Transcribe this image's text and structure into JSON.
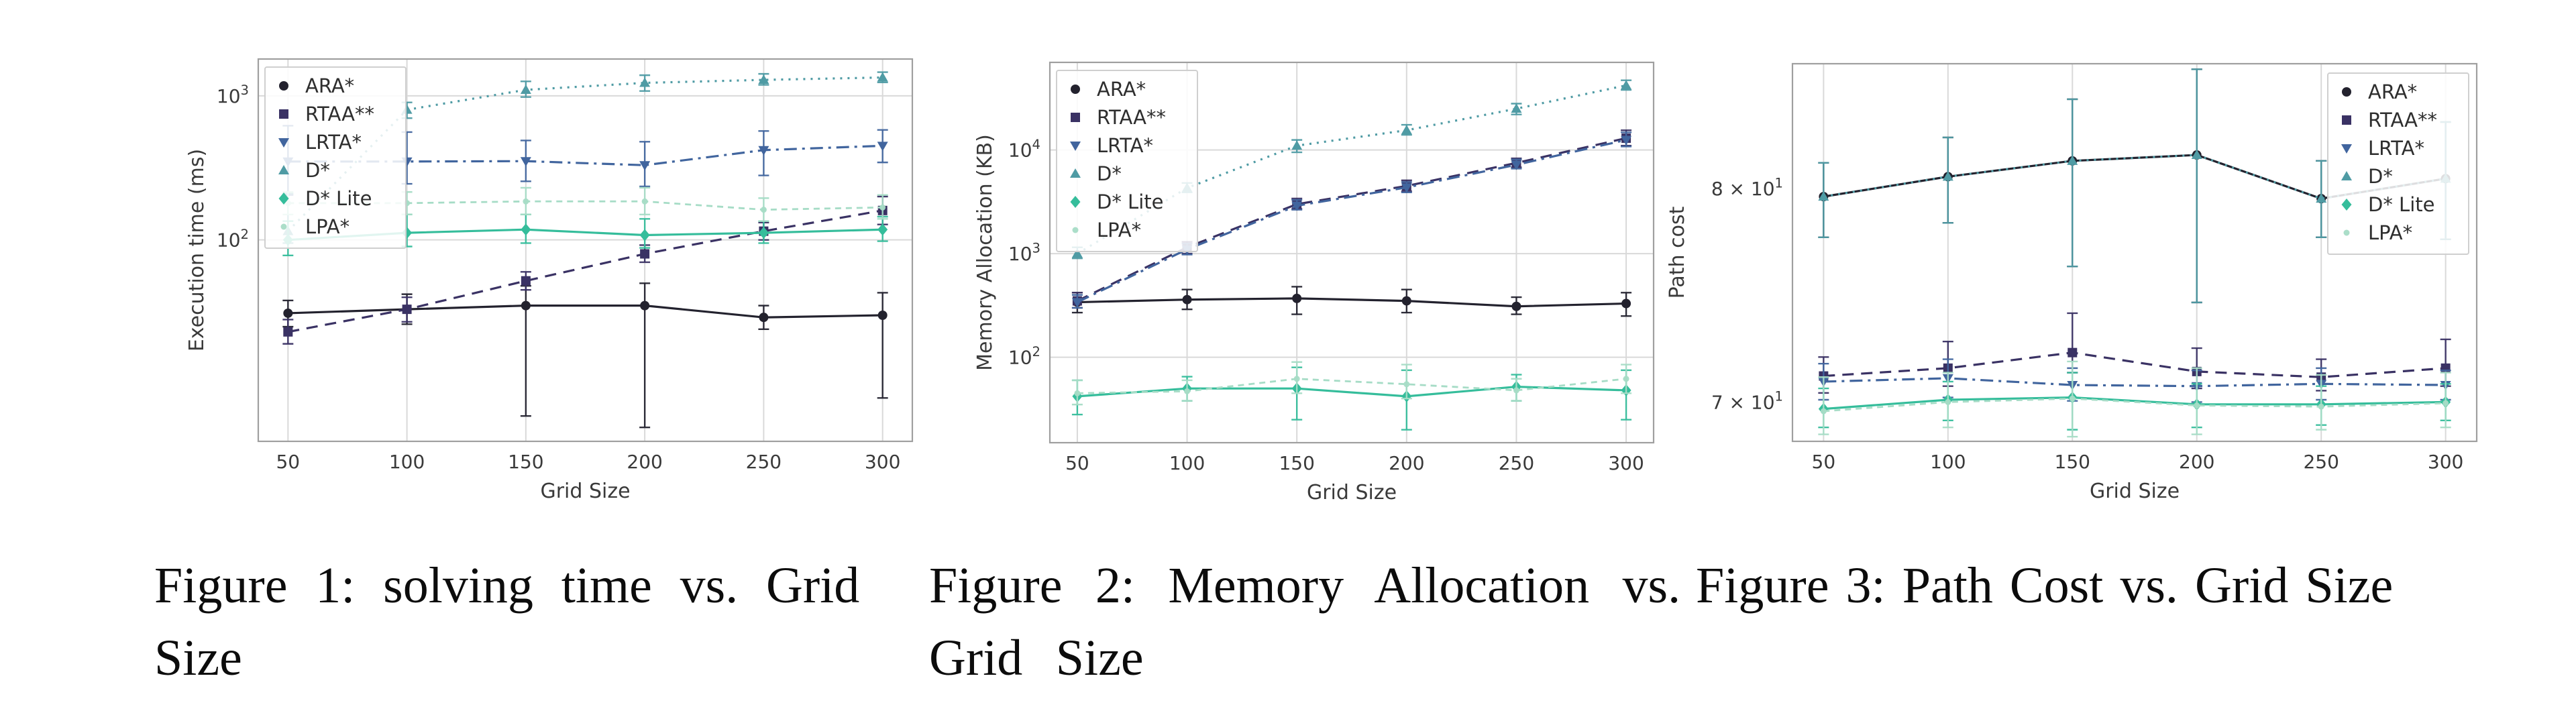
{
  "page": {
    "background": "#ffffff",
    "grid_color": "#d9d9d9",
    "spine_color": "#9f9f9f",
    "text_color": "#3a3a3a"
  },
  "algorithms": [
    {
      "name": "ARA*",
      "color": "#23222e",
      "marker": "circle",
      "line": "solid"
    },
    {
      "name": "RTAA**",
      "color": "#3a3264",
      "marker": "square",
      "line": "dashed"
    },
    {
      "name": "LRTA*",
      "color": "#41659e",
      "marker": "triangle-down",
      "line": "dashdot"
    },
    {
      "name": "D*",
      "color": "#4f9ba4",
      "marker": "triangle-up",
      "line": "dotted"
    },
    {
      "name": "D* Lite",
      "color": "#35bd9b",
      "marker": "diamond",
      "line": "solid"
    },
    {
      "name": "LPA*",
      "color": "#a6dcc6",
      "marker": "dot",
      "line": "dashed-small"
    }
  ],
  "chart_data": [
    {
      "id": "figure1-execution-time",
      "type": "line",
      "title": "",
      "xlabel": "Grid Size",
      "ylabel": "Execution time (ms)",
      "x": [
        50,
        100,
        150,
        200,
        250,
        300
      ],
      "xticklabels": [
        "50",
        "100",
        "150",
        "200",
        "250",
        "300"
      ],
      "yscale": "log",
      "ylim": [
        4,
        1800
      ],
      "yticks": [
        {
          "v": 100,
          "label": "10^2",
          "grid": true
        },
        {
          "v": 1000,
          "label": "10^3",
          "grid": true
        }
      ],
      "legend_position": "upper-left",
      "series": [
        {
          "name": "ARA*",
          "values": [
            31,
            33,
            35,
            35,
            29,
            30
          ],
          "err_lo": [
            25,
            26,
            6,
            5,
            24,
            8
          ],
          "err_hi": [
            38,
            42,
            48,
            50,
            35,
            43
          ]
        },
        {
          "name": "RTAA**",
          "values": [
            23,
            33,
            52,
            80,
            115,
            160
          ],
          "err_lo": [
            19,
            27,
            45,
            70,
            100,
            128
          ],
          "err_hi": [
            28,
            40,
            60,
            92,
            132,
            200
          ]
        },
        {
          "name": "LRTA*",
          "values": [
            350,
            350,
            352,
            330,
            420,
            450
          ],
          "err_lo": [
            205,
            245,
            255,
            235,
            280,
            345
          ],
          "err_hi": [
            620,
            560,
            490,
            480,
            570,
            580
          ]
        },
        {
          "name": "D*",
          "values": [
            115,
            800,
            1100,
            1230,
            1290,
            1340
          ],
          "err_lo": [
            95,
            700,
            980,
            1080,
            1190,
            1240
          ],
          "err_hi": [
            210,
            900,
            1260,
            1390,
            1420,
            1460
          ]
        },
        {
          "name": "D* Lite",
          "values": [
            100,
            112,
            118,
            108,
            112,
            118
          ],
          "err_lo": [
            78,
            90,
            95,
            88,
            95,
            98
          ],
          "err_hi": [
            135,
            150,
            150,
            140,
            135,
            145
          ]
        },
        {
          "name": "LPA*",
          "values": [
            180,
            180,
            185,
            185,
            162,
            168
          ],
          "err_lo": [
            150,
            150,
            150,
            150,
            135,
            140
          ],
          "err_hi": [
            215,
            215,
            230,
            230,
            195,
            205
          ]
        }
      ]
    },
    {
      "id": "figure2-memory-allocation",
      "type": "line",
      "title": "",
      "xlabel": "Grid Size",
      "ylabel": "Memory Allocation (KB)",
      "x": [
        50,
        100,
        150,
        200,
        250,
        300
      ],
      "xticklabels": [
        "50",
        "100",
        "150",
        "200",
        "250",
        "300"
      ],
      "yscale": "log",
      "ylim": [
        15,
        70000
      ],
      "yticks": [
        {
          "v": 100,
          "label": "10^2",
          "grid": true
        },
        {
          "v": 1000,
          "label": "10^3",
          "grid": true
        },
        {
          "v": 10000,
          "label": "10^4",
          "grid": true
        }
      ],
      "legend_position": "upper-left",
      "series": [
        {
          "name": "ARA*",
          "values": [
            340,
            360,
            370,
            350,
            310,
            330
          ],
          "err_lo": [
            270,
            290,
            260,
            270,
            260,
            250
          ],
          "err_hi": [
            420,
            450,
            480,
            450,
            380,
            420
          ]
        },
        {
          "name": "RTAA**",
          "values": [
            350,
            1150,
            3000,
            4500,
            7500,
            13000
          ],
          "err_lo": [
            300,
            1000,
            2700,
            4000,
            6800,
            11000
          ],
          "err_hi": [
            420,
            1300,
            3400,
            5100,
            8300,
            15500
          ]
        },
        {
          "name": "LRTA*",
          "values": [
            340,
            1100,
            2900,
            4350,
            7200,
            12500
          ],
          "err_lo": [
            300,
            980,
            2650,
            3900,
            6600,
            10800
          ],
          "err_hi": [
            400,
            1250,
            3300,
            4900,
            8100,
            14800
          ]
        },
        {
          "name": "D*",
          "values": [
            1000,
            4300,
            11000,
            15500,
            25000,
            42000
          ],
          "err_lo": [
            900,
            3900,
            9500,
            14000,
            22000,
            38000
          ],
          "err_hi": [
            1150,
            4800,
            12500,
            17500,
            28000,
            47000
          ]
        },
        {
          "name": "D* Lite",
          "values": [
            42,
            50,
            50,
            42,
            52,
            48
          ],
          "err_lo": [
            28,
            38,
            25,
            20,
            38,
            25
          ],
          "err_hi": [
            60,
            65,
            80,
            75,
            68,
            75
          ]
        },
        {
          "name": "LPA*",
          "values": [
            45,
            47,
            62,
            55,
            48,
            62
          ],
          "err_lo": [
            35,
            38,
            45,
            40,
            38,
            45
          ],
          "err_hi": [
            60,
            60,
            90,
            85,
            62,
            85
          ]
        }
      ]
    },
    {
      "id": "figure3-path-cost",
      "type": "line",
      "title": "",
      "xlabel": "Grid Size",
      "ylabel": "Path cost",
      "x": [
        50,
        100,
        150,
        200,
        250,
        300
      ],
      "xticklabels": [
        "50",
        "100",
        "150",
        "200",
        "250",
        "300"
      ],
      "yscale": "log",
      "ylim": [
        68.3,
        86.5
      ],
      "yticks": [
        {
          "v": 70,
          "label": "7 × 10^1",
          "grid": false
        },
        {
          "v": 80,
          "label": "8 × 10^1",
          "grid": false
        }
      ],
      "legend_position": "upper-right",
      "series": [
        {
          "name": "ARA*",
          "values": [
            79.6,
            80.6,
            81.4,
            81.7,
            79.5,
            80.5
          ],
          "err_lo": [
            77.6,
            78.3,
            76.2,
            74.5,
            77.6,
            77.5
          ],
          "err_hi": [
            81.3,
            82.6,
            84.6,
            86.2,
            81.4,
            83.4
          ]
        },
        {
          "name": "RTAA**",
          "values": [
            71.15,
            71.5,
            72.2,
            71.35,
            71.1,
            71.5
          ],
          "err_lo": [
            70.4,
            70.7,
            71.3,
            70.6,
            70.5,
            70.7
          ],
          "err_hi": [
            72.0,
            72.7,
            74.0,
            72.4,
            71.9,
            72.8
          ]
        },
        {
          "name": "LRTA*",
          "values": [
            70.9,
            71.05,
            70.75,
            70.7,
            70.8,
            70.75
          ],
          "err_lo": [
            70.1,
            70.2,
            70.05,
            70.0,
            70.1,
            70.1
          ],
          "err_hi": [
            71.7,
            71.9,
            71.5,
            71.4,
            71.5,
            71.4
          ]
        },
        {
          "name": "D*",
          "values": [
            79.6,
            80.6,
            81.4,
            81.7,
            79.5,
            80.5
          ],
          "err_lo": [
            77.6,
            78.3,
            76.2,
            74.5,
            77.6,
            77.5
          ],
          "err_hi": [
            81.3,
            82.6,
            84.6,
            86.2,
            81.4,
            83.4
          ]
        },
        {
          "name": "D* Lite",
          "values": [
            69.7,
            70.1,
            70.2,
            69.9,
            69.9,
            70.0
          ],
          "err_lo": [
            68.9,
            69.2,
            68.8,
            68.9,
            69.0,
            69.2
          ],
          "err_hi": [
            70.6,
            70.9,
            71.3,
            70.8,
            70.7,
            70.8
          ]
        },
        {
          "name": "LPA*",
          "values": [
            69.6,
            70.0,
            70.15,
            69.85,
            69.8,
            69.95
          ],
          "err_lo": [
            68.6,
            68.9,
            68.5,
            68.6,
            68.8,
            68.9
          ],
          "err_hi": [
            71.1,
            71.3,
            71.8,
            71.5,
            71.2,
            71.3
          ]
        }
      ]
    }
  ],
  "captions": [
    {
      "lines": [
        "Figure 1: solving time vs. Grid",
        "Size"
      ]
    },
    {
      "lines": [
        "Figure 2: Memory Allocation vs.",
        "Grid Size"
      ]
    },
    {
      "lines": [
        "Figure 3: Path Cost vs. Grid Size"
      ]
    }
  ]
}
